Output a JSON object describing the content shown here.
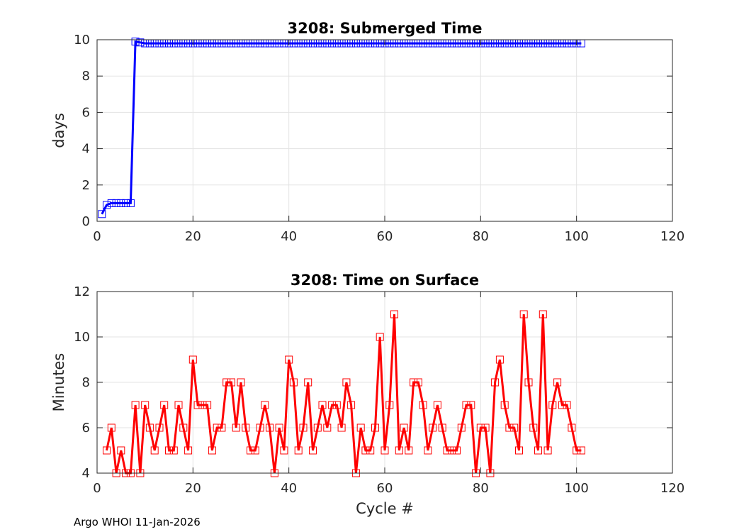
{
  "footer": "Argo WHOI 11-Jan-2026",
  "chart_data": [
    {
      "type": "line",
      "title": "3208: Submerged Time",
      "xlabel": "",
      "ylabel": "days",
      "xlim": [
        0,
        120
      ],
      "ylim": [
        0,
        10
      ],
      "xticks": [
        0,
        20,
        40,
        60,
        80,
        100,
        120
      ],
      "yticks": [
        0,
        2,
        4,
        6,
        8,
        10
      ],
      "color": "#0000ff",
      "marker": "square",
      "grid": true,
      "x": [
        1,
        2,
        3,
        4,
        5,
        6,
        7,
        8,
        9,
        10,
        11,
        12,
        13,
        14,
        15,
        16,
        17,
        18,
        19,
        20,
        21,
        22,
        23,
        24,
        25,
        26,
        27,
        28,
        29,
        30,
        31,
        32,
        33,
        34,
        35,
        36,
        37,
        38,
        39,
        40,
        41,
        42,
        43,
        44,
        45,
        46,
        47,
        48,
        49,
        50,
        51,
        52,
        53,
        54,
        55,
        56,
        57,
        58,
        59,
        60,
        61,
        62,
        63,
        64,
        65,
        66,
        67,
        68,
        69,
        70,
        71,
        72,
        73,
        74,
        75,
        76,
        77,
        78,
        79,
        80,
        81,
        82,
        83,
        84,
        85,
        86,
        87,
        88,
        89,
        90,
        91,
        92,
        93,
        94,
        95,
        96,
        97,
        98,
        99,
        100,
        101
      ],
      "y": [
        0.4,
        0.9,
        1.0,
        1.0,
        1.0,
        1.0,
        1.0,
        9.9,
        9.85,
        9.8,
        9.8,
        9.8,
        9.8,
        9.8,
        9.8,
        9.8,
        9.8,
        9.8,
        9.8,
        9.8,
        9.8,
        9.8,
        9.8,
        9.8,
        9.8,
        9.8,
        9.8,
        9.8,
        9.8,
        9.8,
        9.8,
        9.8,
        9.8,
        9.8,
        9.8,
        9.8,
        9.8,
        9.8,
        9.8,
        9.8,
        9.8,
        9.8,
        9.8,
        9.8,
        9.8,
        9.8,
        9.8,
        9.8,
        9.8,
        9.8,
        9.8,
        9.8,
        9.8,
        9.8,
        9.8,
        9.8,
        9.8,
        9.8,
        9.8,
        9.8,
        9.8,
        9.8,
        9.8,
        9.8,
        9.8,
        9.8,
        9.8,
        9.8,
        9.8,
        9.8,
        9.8,
        9.8,
        9.8,
        9.8,
        9.8,
        9.8,
        9.8,
        9.8,
        9.8,
        9.8,
        9.8,
        9.8,
        9.8,
        9.8,
        9.8,
        9.8,
        9.8,
        9.8,
        9.8,
        9.8,
        9.8,
        9.8,
        9.8,
        9.8,
        9.8,
        9.8,
        9.8,
        9.8,
        9.8,
        9.8,
        9.8
      ]
    },
    {
      "type": "line",
      "title": "3208: Time on Surface",
      "xlabel": "Cycle #",
      "ylabel": "Minutes",
      "xlim": [
        0,
        120
      ],
      "ylim": [
        4,
        12
      ],
      "xticks": [
        0,
        20,
        40,
        60,
        80,
        100,
        120
      ],
      "yticks": [
        4,
        6,
        8,
        10,
        12
      ],
      "color": "#ff0000",
      "marker": "square",
      "grid": true,
      "x": [
        2,
        3,
        4,
        5,
        6,
        7,
        8,
        9,
        10,
        11,
        12,
        13,
        14,
        15,
        16,
        17,
        18,
        19,
        20,
        21,
        22,
        23,
        24,
        25,
        26,
        27,
        28,
        29,
        30,
        31,
        32,
        33,
        34,
        35,
        36,
        37,
        38,
        39,
        40,
        41,
        42,
        43,
        44,
        45,
        46,
        47,
        48,
        49,
        50,
        51,
        52,
        53,
        54,
        55,
        56,
        57,
        58,
        59,
        60,
        61,
        62,
        63,
        64,
        65,
        66,
        67,
        68,
        69,
        70,
        71,
        72,
        73,
        74,
        75,
        76,
        77,
        78,
        79,
        80,
        81,
        82,
        83,
        84,
        85,
        86,
        87,
        88,
        89,
        90,
        91,
        92,
        93,
        94,
        95,
        96,
        97,
        98,
        99,
        100,
        101
      ],
      "y": [
        5,
        6,
        4,
        5,
        4,
        4,
        7,
        4,
        7,
        6,
        5,
        6,
        7,
        5,
        5,
        7,
        6,
        5,
        9,
        7,
        7,
        7,
        5,
        6,
        6,
        8,
        8,
        6,
        8,
        6,
        5,
        5,
        6,
        7,
        6,
        4,
        6,
        5,
        9,
        8,
        5,
        6,
        8,
        5,
        6,
        7,
        6,
        7,
        7,
        6,
        8,
        7,
        4,
        6,
        5,
        5,
        6,
        10,
        5,
        7,
        11,
        5,
        6,
        5,
        8,
        8,
        7,
        5,
        6,
        7,
        6,
        5,
        5,
        5,
        6,
        7,
        7,
        4,
        6,
        6,
        4,
        8,
        9,
        7,
        6,
        6,
        5,
        11,
        8,
        6,
        5,
        11,
        5,
        7,
        8,
        7,
        7,
        6,
        5,
        5
      ]
    }
  ]
}
